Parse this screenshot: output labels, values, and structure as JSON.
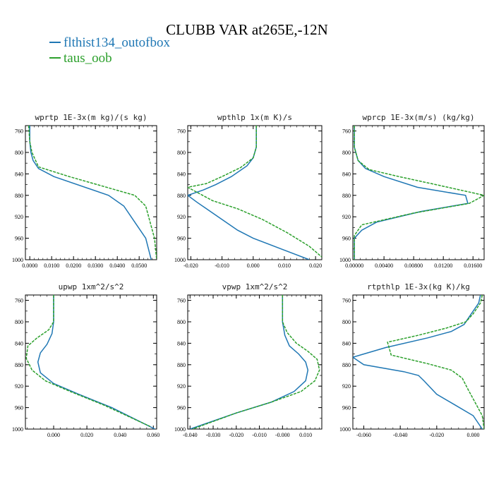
{
  "figure": {
    "title": "CLUBB VAR at265E,-12N",
    "legend": [
      "flthist134_outofbox",
      "taus_oob"
    ],
    "colors": {
      "flthist134_outofbox": "#1f77b4",
      "taus_oob": "#2ca02c"
    }
  },
  "chart_data": [
    {
      "type": "line",
      "title": "wprtp  1E-3x(m kg)/(s kg)",
      "xlim": [
        -0.002,
        0.058
      ],
      "ylim": [
        1000,
        750
      ],
      "xticks": [
        0,
        0.01,
        0.02,
        0.03,
        0.04,
        0.05
      ],
      "xtick_labels": [
        "0.0000",
        "0.0100",
        "0.0200",
        "0.0300",
        "0.0400",
        "0.0500"
      ],
      "yticks": [
        760,
        800,
        840,
        880,
        920,
        960,
        1000
      ],
      "series": [
        {
          "name": "flthist134_outofbox",
          "x": [
            0.0,
            0.0,
            0.0005,
            0.0015,
            0.004,
            0.011,
            0.036,
            0.043,
            0.048,
            0.053,
            0.0555
          ],
          "y": [
            750,
            780,
            800,
            815,
            830,
            845,
            880,
            900,
            930,
            960,
            1000
          ]
        },
        {
          "name": "taus_oob",
          "x": [
            -0.0005,
            0.0,
            0.001,
            0.004,
            0.018,
            0.048,
            0.053,
            0.055,
            0.057,
            0.058
          ],
          "y": [
            750,
            780,
            800,
            827,
            845,
            880,
            900,
            930,
            960,
            1000
          ]
        }
      ]
    },
    {
      "type": "line",
      "title": "wpthlp  1x(m K)/s",
      "xlim": [
        -0.021,
        0.022
      ],
      "ylim": [
        1000,
        750
      ],
      "xticks": [
        -0.02,
        -0.01,
        0.0,
        0.01,
        0.02
      ],
      "xtick_labels": [
        "-0.020",
        "-0.010",
        "0.000",
        "0.010",
        "0.020"
      ],
      "yticks": [
        760,
        800,
        840,
        880,
        920,
        960,
        1000
      ],
      "series": [
        {
          "name": "flthist134_outofbox",
          "x": [
            0.001,
            0.001,
            0.0,
            -0.002,
            -0.007,
            -0.012,
            -0.016,
            -0.021,
            -0.018,
            -0.015,
            -0.01,
            -0.005,
            0.0,
            0.009,
            0.018
          ],
          "y": [
            750,
            790,
            810,
            825,
            845,
            860,
            870,
            880,
            893,
            905,
            925,
            945,
            960,
            980,
            1000
          ]
        },
        {
          "name": "taus_oob",
          "x": [
            0.001,
            0.001,
            0.0,
            -0.004,
            -0.01,
            -0.015,
            -0.021,
            -0.013,
            -0.005,
            0.003,
            0.011,
            0.018,
            0.022
          ],
          "y": [
            750,
            790,
            810,
            828,
            845,
            858,
            865,
            890,
            905,
            925,
            950,
            975,
            995
          ]
        }
      ]
    },
    {
      "type": "line",
      "title": "wprcp  1E-3x(m/s) (kg/kg)",
      "xlim": [
        -0.0002,
        0.0175
      ],
      "ylim": [
        1000,
        750
      ],
      "xticks": [
        0,
        0.004,
        0.008,
        0.012,
        0.016
      ],
      "xtick_labels": [
        "0.00000",
        "0.00400",
        "0.00800",
        "0.01200",
        "0.01600"
      ],
      "yticks": [
        760,
        800,
        840,
        880,
        920,
        960,
        1000
      ],
      "series": [
        {
          "name": "flthist134_outofbox",
          "x": [
            0.0,
            0.0,
            0.0005,
            0.0015,
            0.004,
            0.0085,
            0.015,
            0.0153,
            0.009,
            0.003,
            0.001,
            0.0,
            0.0
          ],
          "y": [
            750,
            790,
            815,
            830,
            845,
            865,
            880,
            895,
            910,
            930,
            945,
            960,
            1000
          ]
        },
        {
          "name": "taus_oob",
          "x": [
            0.0,
            0.0,
            0.0005,
            0.002,
            0.006,
            0.011,
            0.0175,
            0.0155,
            0.008,
            0.001,
            0.0,
            0.0
          ],
          "y": [
            750,
            790,
            815,
            832,
            845,
            860,
            880,
            895,
            913,
            935,
            955,
            1000
          ]
        }
      ]
    },
    {
      "type": "line",
      "title": "upwp  1xm^2/s^2",
      "xlim": [
        -0.017,
        0.062
      ],
      "ylim": [
        1000,
        750
      ],
      "xticks": [
        0,
        0.02,
        0.04,
        0.06
      ],
      "xtick_labels": [
        "0.000",
        "0.020",
        "0.040",
        "0.060"
      ],
      "yticks": [
        760,
        800,
        840,
        880,
        920,
        960,
        1000
      ],
      "series": [
        {
          "name": "flthist134_outofbox",
          "x": [
            0.0,
            0.0,
            -0.001,
            -0.004,
            -0.008,
            -0.0095,
            -0.008,
            0.0,
            0.015,
            0.035,
            0.061
          ],
          "y": [
            750,
            800,
            822,
            842,
            858,
            875,
            895,
            915,
            935,
            960,
            1000
          ]
        },
        {
          "name": "taus_oob",
          "x": [
            0.0,
            0.0,
            -0.003,
            -0.01,
            -0.0155,
            -0.0165,
            -0.013,
            -0.005,
            0.01,
            0.03,
            0.058
          ],
          "y": [
            750,
            800,
            815,
            830,
            845,
            868,
            890,
            910,
            930,
            955,
            995
          ]
        }
      ]
    },
    {
      "type": "line",
      "title": "vpwp  1xm^2/s^2",
      "xlim": [
        -0.041,
        0.017
      ],
      "ylim": [
        1000,
        750
      ],
      "xticks": [
        -0.04,
        -0.03,
        -0.02,
        -0.01,
        0.0,
        0.01
      ],
      "xtick_labels": [
        "-0.040",
        "-0.030",
        "-0.020",
        "-0.010",
        "-0.000",
        "0.010"
      ],
      "yticks": [
        760,
        800,
        840,
        880,
        920,
        960,
        1000
      ],
      "series": [
        {
          "name": "flthist134_outofbox",
          "x": [
            0.0,
            0.0,
            0.001,
            0.003,
            0.007,
            0.01,
            0.011,
            0.01,
            0.005,
            -0.005,
            -0.02,
            -0.04
          ],
          "y": [
            750,
            800,
            825,
            845,
            860,
            875,
            890,
            910,
            930,
            950,
            970,
            1000
          ]
        },
        {
          "name": "taus_oob",
          "x": [
            0.0,
            0.0,
            0.002,
            0.006,
            0.011,
            0.015,
            0.016,
            0.014,
            0.008,
            -0.005,
            -0.02,
            -0.039
          ],
          "y": [
            750,
            800,
            820,
            840,
            855,
            870,
            890,
            910,
            930,
            950,
            970,
            1000
          ]
        }
      ]
    },
    {
      "type": "line",
      "title": "rtpthlp  1E-3x(kg K)/kg",
      "xlim": [
        -0.066,
        0.006
      ],
      "ylim": [
        1000,
        750
      ],
      "xticks": [
        -0.06,
        -0.04,
        -0.02,
        0.0
      ],
      "xtick_labels": [
        "-0.060",
        "-0.040",
        "-0.020",
        "0.000"
      ],
      "yticks": [
        760,
        800,
        840,
        880,
        920,
        960,
        1000
      ],
      "series": [
        {
          "name": "flthist134_outofbox",
          "x": [
            0.004,
            0.003,
            -0.001,
            -0.005,
            -0.012,
            -0.025,
            -0.048,
            -0.066,
            -0.06,
            -0.038,
            -0.03,
            -0.027,
            -0.02,
            -0.01,
            0.0,
            0.005
          ],
          "y": [
            750,
            765,
            785,
            805,
            818,
            830,
            848,
            866,
            880,
            893,
            900,
            910,
            935,
            955,
            975,
            1000
          ]
        },
        {
          "name": "taus_oob",
          "x": [
            0.005,
            0.004,
            0.0,
            -0.004,
            -0.015,
            -0.03,
            -0.047,
            -0.045,
            -0.025,
            -0.012,
            -0.006,
            -0.003,
            0.001,
            0.005,
            0.006
          ],
          "y": [
            750,
            765,
            785,
            800,
            812,
            825,
            838,
            862,
            878,
            890,
            905,
            925,
            950,
            975,
            1000
          ]
        }
      ]
    }
  ]
}
